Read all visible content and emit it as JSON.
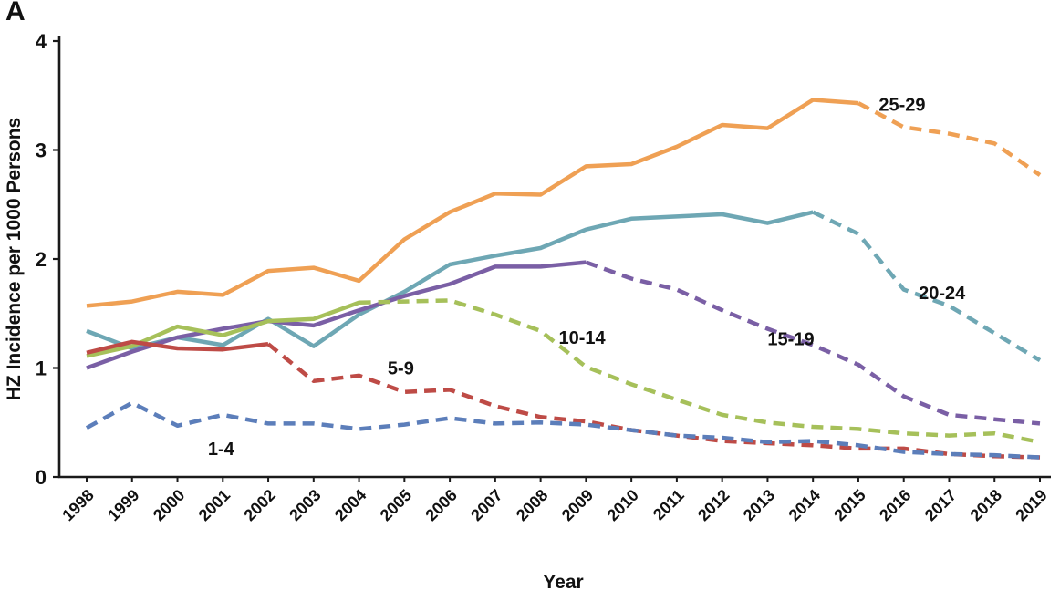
{
  "panel_label": "A",
  "chart_data": {
    "type": "line",
    "title": "",
    "xlabel": "Year",
    "ylabel": "HZ Incidence per 1000 Persons",
    "ylim": [
      0,
      4
    ],
    "y_ticks": [
      0,
      1,
      2,
      3,
      4
    ],
    "grid": false,
    "legend_position": "none",
    "axis_color": "#1a1a1a",
    "text_color": "#111111",
    "x": [
      1998,
      1999,
      2000,
      2001,
      2002,
      2003,
      2004,
      2005,
      2006,
      2007,
      2008,
      2009,
      2010,
      2011,
      2012,
      2013,
      2014,
      2015,
      2016,
      2017,
      2018,
      2019
    ],
    "series": [
      {
        "name": "25-29",
        "color": "#EFA054",
        "solid_until": 2015,
        "values": [
          1.57,
          1.61,
          1.7,
          1.67,
          1.89,
          1.92,
          1.8,
          2.18,
          2.43,
          2.6,
          2.59,
          2.85,
          2.87,
          3.03,
          3.23,
          3.2,
          3.46,
          3.43,
          3.21,
          3.15,
          3.06,
          2.77
        ]
      },
      {
        "name": "20-24",
        "color": "#6EA7B4",
        "solid_until": 2014,
        "values": [
          1.34,
          1.18,
          1.28,
          1.21,
          1.45,
          1.2,
          1.49,
          1.7,
          1.95,
          2.03,
          2.1,
          2.27,
          2.37,
          2.39,
          2.41,
          2.33,
          2.43,
          2.23,
          1.72,
          1.57,
          1.32,
          1.07
        ]
      },
      {
        "name": "15-19",
        "color": "#7A5FA5",
        "solid_until": 2009,
        "values": [
          1.0,
          1.15,
          1.28,
          1.36,
          1.43,
          1.39,
          1.53,
          1.66,
          1.77,
          1.93,
          1.93,
          1.97,
          1.82,
          1.72,
          1.53,
          1.36,
          1.21,
          1.03,
          0.74,
          0.57,
          0.53,
          0.49
        ]
      },
      {
        "name": "10-14",
        "color": "#A6C05A",
        "solid_until": 2004,
        "values": [
          1.11,
          1.2,
          1.38,
          1.3,
          1.43,
          1.45,
          1.6,
          1.61,
          1.62,
          1.49,
          1.34,
          1.01,
          0.85,
          0.71,
          0.57,
          0.5,
          0.46,
          0.44,
          0.4,
          0.38,
          0.4,
          0.32
        ]
      },
      {
        "name": "5-9",
        "color": "#BE4B46",
        "solid_until": 2002,
        "values": [
          1.14,
          1.24,
          1.18,
          1.17,
          1.22,
          0.88,
          0.93,
          0.78,
          0.8,
          0.65,
          0.55,
          0.51,
          0.43,
          0.38,
          0.33,
          0.31,
          0.29,
          0.26,
          0.26,
          0.21,
          0.19,
          0.18
        ]
      },
      {
        "name": "1-4",
        "color": "#5C7EBA",
        "solid_until": 1998,
        "values": [
          0.45,
          0.68,
          0.47,
          0.57,
          0.49,
          0.49,
          0.44,
          0.48,
          0.54,
          0.49,
          0.5,
          0.48,
          0.43,
          0.38,
          0.36,
          0.32,
          0.33,
          0.29,
          0.23,
          0.21,
          0.2,
          0.18
        ]
      }
    ],
    "annotations": [
      {
        "label": "25-29",
        "year": 2015.45,
        "value": 3.36
      },
      {
        "label": "20-24",
        "year": 2016.33,
        "value": 1.63
      },
      {
        "label": "15-19",
        "year": 2013.0,
        "value": 1.21
      },
      {
        "label": "10-14",
        "year": 2008.4,
        "value": 1.22
      },
      {
        "label": "5-9",
        "year": 2004.63,
        "value": 0.94
      },
      {
        "label": "1-4",
        "year": 2000.67,
        "value": 0.2
      }
    ]
  }
}
